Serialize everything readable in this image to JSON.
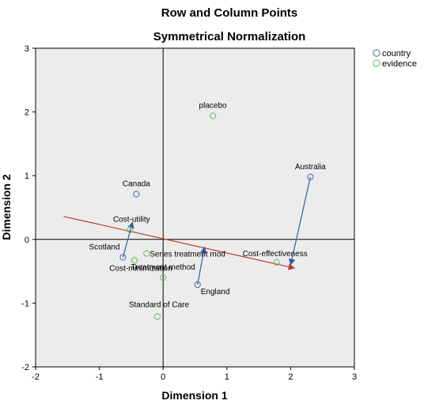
{
  "chart_data": {
    "type": "scatter",
    "title": "Row and Column Points",
    "subtitle": "Symmetrical Normalization",
    "xlabel": "Dimension 1",
    "ylabel": "Dimension 2",
    "xlim": [
      -2,
      3
    ],
    "ylim": [
      -2,
      3
    ],
    "xticks": [
      "-2",
      "-1",
      "0",
      "1",
      "2",
      "3"
    ],
    "yticks": [
      "-2",
      "-1",
      "0",
      "1",
      "2",
      "3"
    ],
    "grid": false,
    "background": "#ececec",
    "legend_position": "top-right",
    "series": [
      {
        "name": "country",
        "color": "#5a6fb3",
        "points": [
          {
            "label": "Canada",
            "x": -0.42,
            "y": 0.71
          },
          {
            "label": "Scotland",
            "x": -0.63,
            "y": -0.28
          },
          {
            "label": "England",
            "x": 0.54,
            "y": -0.71
          },
          {
            "label": "Australia",
            "x": 2.31,
            "y": 0.98
          }
        ]
      },
      {
        "name": "evidence",
        "color": "#6cc26c",
        "points": [
          {
            "label": "placebo",
            "x": 0.78,
            "y": 1.94
          },
          {
            "label": "Cost-utility",
            "x": -0.52,
            "y": 0.15
          },
          {
            "label": "Series treatment mod",
            "x": -0.26,
            "y": -0.22
          },
          {
            "label": "Cost-minimization",
            "x": -0.45,
            "y": -0.33
          },
          {
            "label": "Treatment method",
            "x": 0.0,
            "y": -0.6
          },
          {
            "label": "Standard of Care",
            "x": -0.09,
            "y": -1.21
          },
          {
            "label": "Cost-effectiveness",
            "x": 1.78,
            "y": -0.36
          }
        ]
      }
    ],
    "arrows": [
      {
        "from": [
          -1.56,
          0.36
        ],
        "to": [
          2.06,
          -0.45
        ],
        "color": "#c0392b"
      },
      {
        "from": [
          -0.63,
          -0.28
        ],
        "to": [
          -0.48,
          0.27
        ],
        "color": "#2e5fa3"
      },
      {
        "from": [
          0.54,
          -0.71
        ],
        "to": [
          0.65,
          -0.12
        ],
        "color": "#2e5fa3"
      },
      {
        "from": [
          2.31,
          0.98
        ],
        "to": [
          2.0,
          -0.4
        ],
        "color": "#2e5fa3"
      }
    ]
  }
}
